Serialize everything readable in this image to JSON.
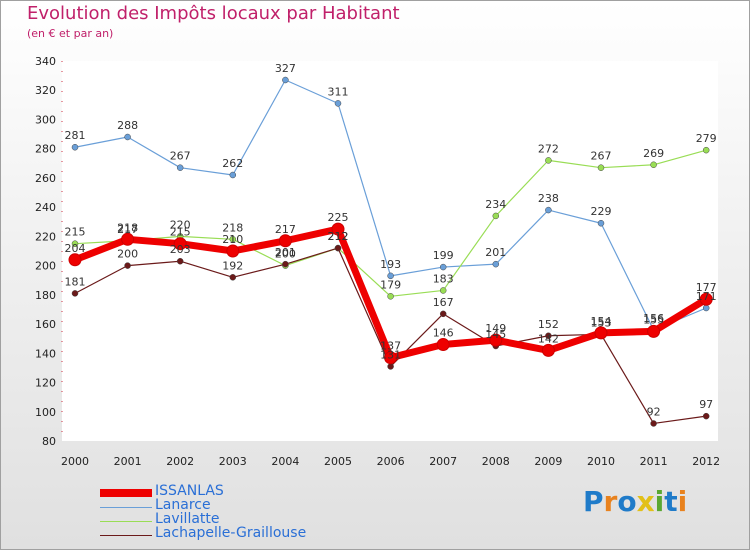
{
  "title": "Evolution des Impôts locaux par Habitant",
  "subtitle": "(en € et par an)",
  "logo": {
    "text": "Proxiti",
    "colors": [
      "#1f7bc9",
      "#e8821e",
      "#1f7bc9",
      "#e2c018",
      "#5aa832",
      "#1f7bc9",
      "#e8821e"
    ]
  },
  "chart_data": {
    "type": "line",
    "title": "Evolution des Impôts locaux par Habitant",
    "subtitle": "(en € et par an)",
    "x": [
      "2000",
      "2001",
      "2002",
      "2003",
      "2004",
      "2005",
      "2006",
      "2007",
      "2008",
      "2009",
      "2010",
      "2011",
      "2012"
    ],
    "ylim": [
      80,
      340
    ],
    "yticks": [
      80,
      100,
      120,
      140,
      160,
      180,
      200,
      220,
      240,
      260,
      280,
      300,
      320,
      340
    ],
    "grid": false,
    "legend_position": "bottom-left",
    "series": [
      {
        "name": "ISSANLAS",
        "color": "#ee0000",
        "values": [
          204,
          218,
          215,
          210,
          217,
          225,
          137,
          146,
          149,
          142,
          154,
          155,
          177
        ]
      },
      {
        "name": "Lanarce",
        "color": "#6a9fd8",
        "values": [
          281,
          288,
          267,
          262,
          327,
          311,
          193,
          199,
          201,
          238,
          229,
          156,
          171
        ]
      },
      {
        "name": "Lavillatte",
        "color": "#99dd55",
        "values": [
          215,
          217,
          220,
          218,
          200,
          212,
          179,
          183,
          234,
          272,
          267,
          269,
          279
        ]
      },
      {
        "name": "Lachapelle-Graillouse",
        "color": "#6b1a1a",
        "values": [
          181,
          200,
          203,
          192,
          201,
          212,
          131,
          167,
          145,
          152,
          153,
          92,
          97
        ]
      }
    ]
  }
}
